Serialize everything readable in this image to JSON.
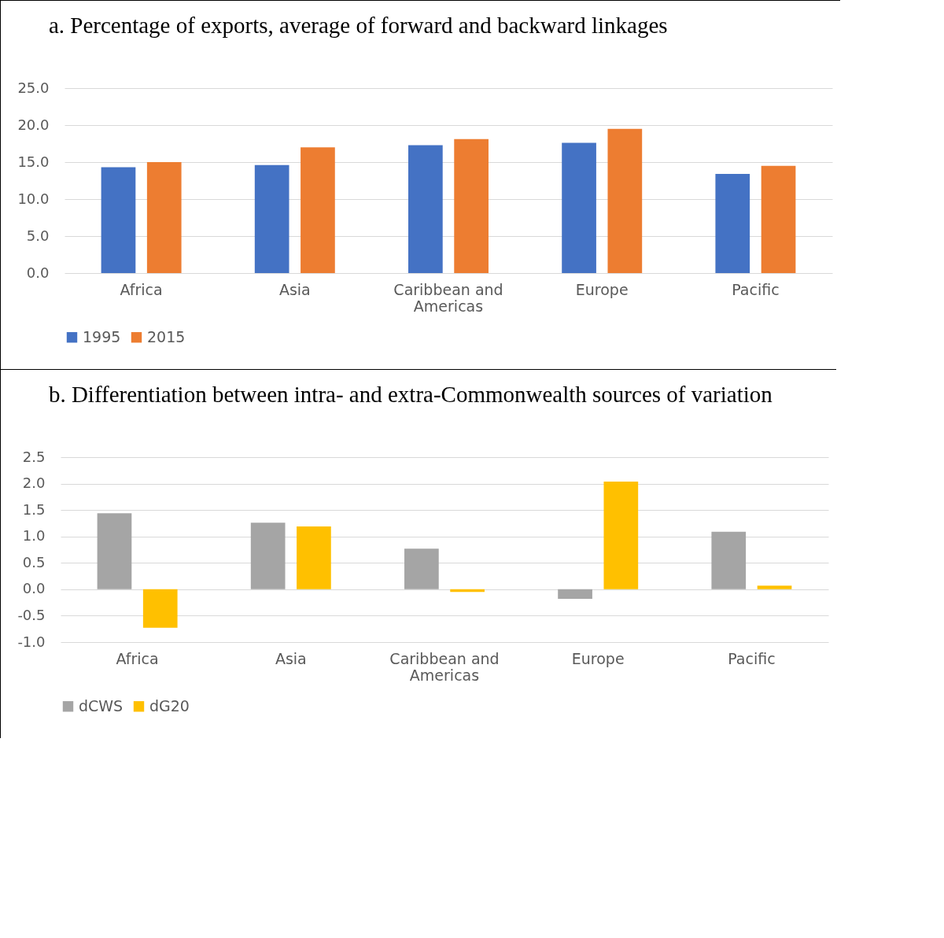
{
  "chart_data": [
    {
      "type": "bar",
      "title": "a.   Percentage of exports, average of forward and backward linkages",
      "categories": [
        "Africa",
        "Asia",
        "Caribbean and Americas",
        "Europe",
        "Pacific"
      ],
      "series": [
        {
          "name": "1995",
          "color": "#4472c4",
          "values": [
            14.3,
            14.6,
            17.3,
            17.6,
            13.4
          ]
        },
        {
          "name": "2015",
          "color": "#ed7d31",
          "values": [
            15.0,
            17.0,
            18.1,
            19.5,
            14.5
          ]
        }
      ],
      "ylim": [
        0,
        25
      ],
      "yticks": [
        {
          "value": 0,
          "label": "0.0"
        },
        {
          "value": 5,
          "label": "5.0"
        },
        {
          "value": 10,
          "label": "10.0"
        },
        {
          "value": 15,
          "label": "15.0"
        },
        {
          "value": 20,
          "label": "20.0"
        },
        {
          "value": 25,
          "label": "25.0"
        }
      ],
      "grid": "y",
      "legend": "bottom"
    },
    {
      "type": "bar",
      "title": "b. Differentiation between intra- and extra-Commonwealth sources of variation",
      "categories": [
        "Africa",
        "Asia",
        "Caribbean and Americas",
        "Europe",
        "Pacific"
      ],
      "series": [
        {
          "name": "dCWS",
          "color": "#a5a5a5",
          "values": [
            1.44,
            1.26,
            0.77,
            -0.18,
            1.09
          ]
        },
        {
          "name": "dG20",
          "color": "#ffc000",
          "values": [
            -0.73,
            1.19,
            -0.05,
            2.04,
            0.07
          ]
        }
      ],
      "ylim": [
        -1,
        2.5
      ],
      "yticks": [
        {
          "value": -1,
          "label": "-1.0"
        },
        {
          "value": -0.5,
          "label": "-0.5"
        },
        {
          "value": 0,
          "label": "0.0"
        },
        {
          "value": 0.5,
          "label": "0.5"
        },
        {
          "value": 1,
          "label": "1.0"
        },
        {
          "value": 1.5,
          "label": "1.5"
        },
        {
          "value": 2,
          "label": "2.0"
        },
        {
          "value": 2.5,
          "label": "2.5"
        }
      ],
      "grid": "y",
      "legend": "bottom"
    }
  ]
}
